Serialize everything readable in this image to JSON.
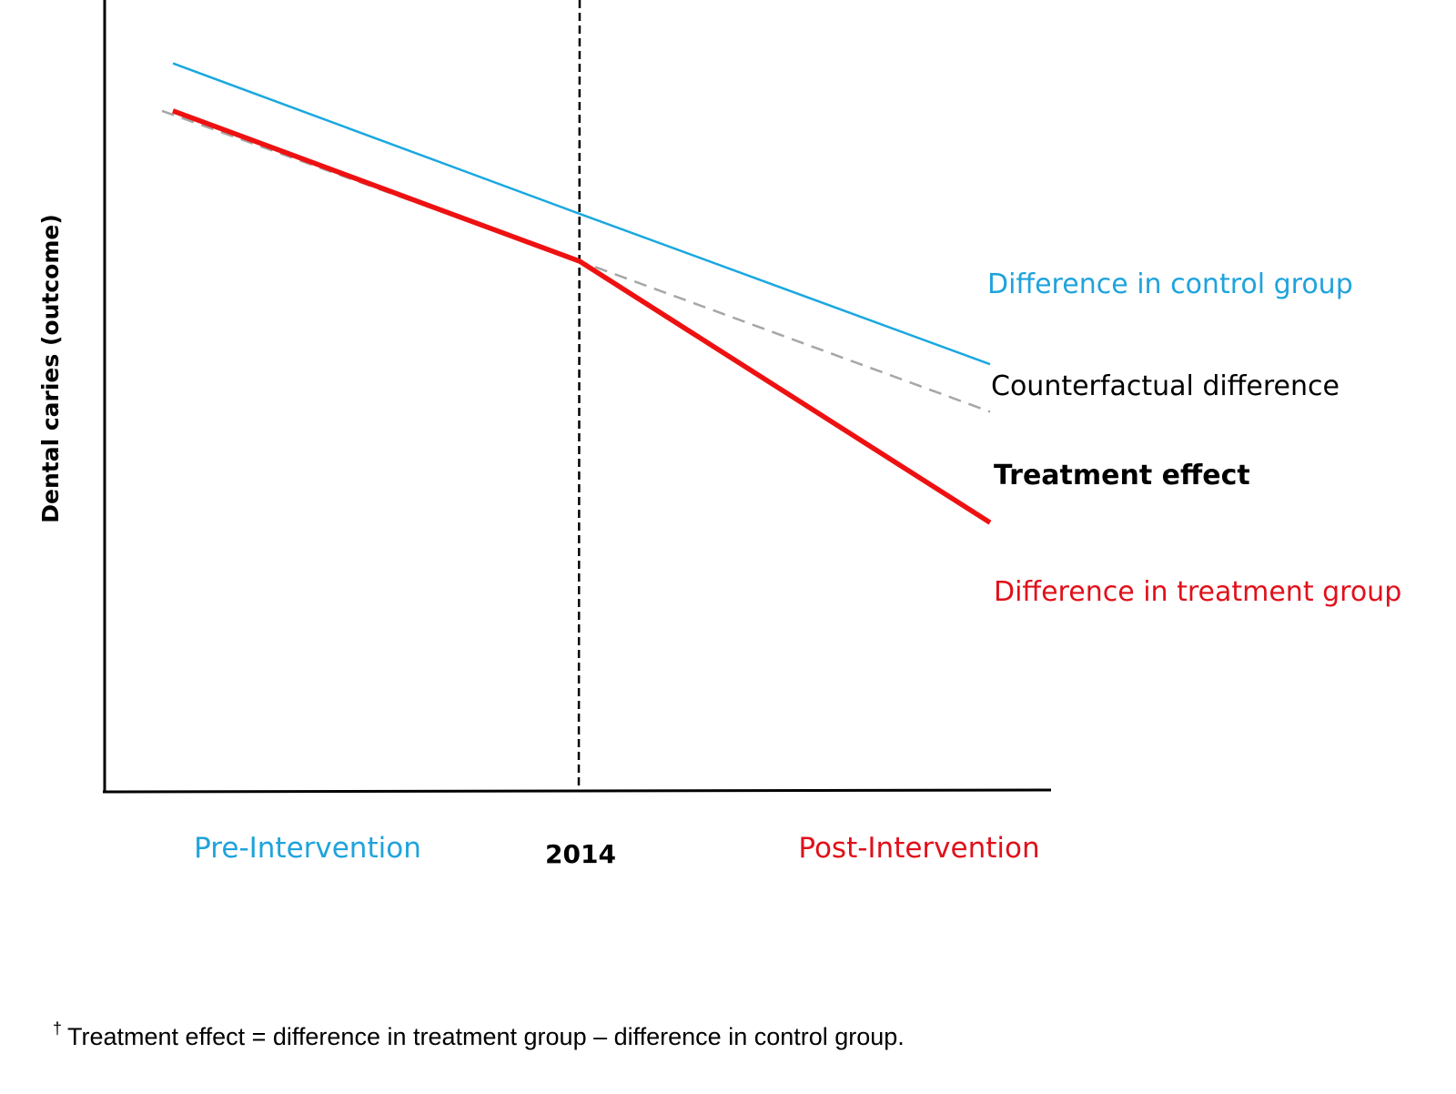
{
  "chart_data": {
    "type": "line",
    "ylabel": "Dental caries (outcome)",
    "xlabel": "",
    "x_ticks": [
      {
        "label": "Pre-Intervention",
        "color": "#1fa3dc",
        "bold": false
      },
      {
        "label": "2014",
        "color": "#000000",
        "bold": true
      },
      {
        "label": "Post-Intervention",
        "color": "#e0101a",
        "bold": false
      }
    ],
    "x": [
      "pre",
      "2014",
      "post"
    ],
    "series": [
      {
        "key": "control",
        "values": [
          9.2,
          7.3,
          5.4
        ],
        "color": "#1ba8e0",
        "style": "solid"
      },
      {
        "key": "counterfactual",
        "values": [
          8.6,
          6.7,
          4.8
        ],
        "color": "#a6a6a6",
        "style": "dashed"
      },
      {
        "key": "treatment",
        "values": [
          8.6,
          6.7,
          3.4
        ],
        "color": "#ee1111",
        "style": "solid-thick"
      }
    ],
    "annotations": [
      {
        "key": "control",
        "text": "Difference in control group",
        "color": "#1fa3dc",
        "bold": false
      },
      {
        "key": "counterfactual",
        "text": "Counterfactual difference",
        "color": "#000000",
        "bold": false
      },
      {
        "key": "effect",
        "text": "Treatment effect",
        "color": "#000000",
        "bold": true
      },
      {
        "key": "treatment",
        "text": "Difference in treatment group",
        "color": "#e0101a",
        "bold": false
      }
    ],
    "intervention_marker": "2014",
    "ylim": [
      0,
      10
    ],
    "grid": false
  },
  "footnote": {
    "symbol": "†",
    "text": "Treatment effect = difference in treatment group – difference in control group."
  }
}
